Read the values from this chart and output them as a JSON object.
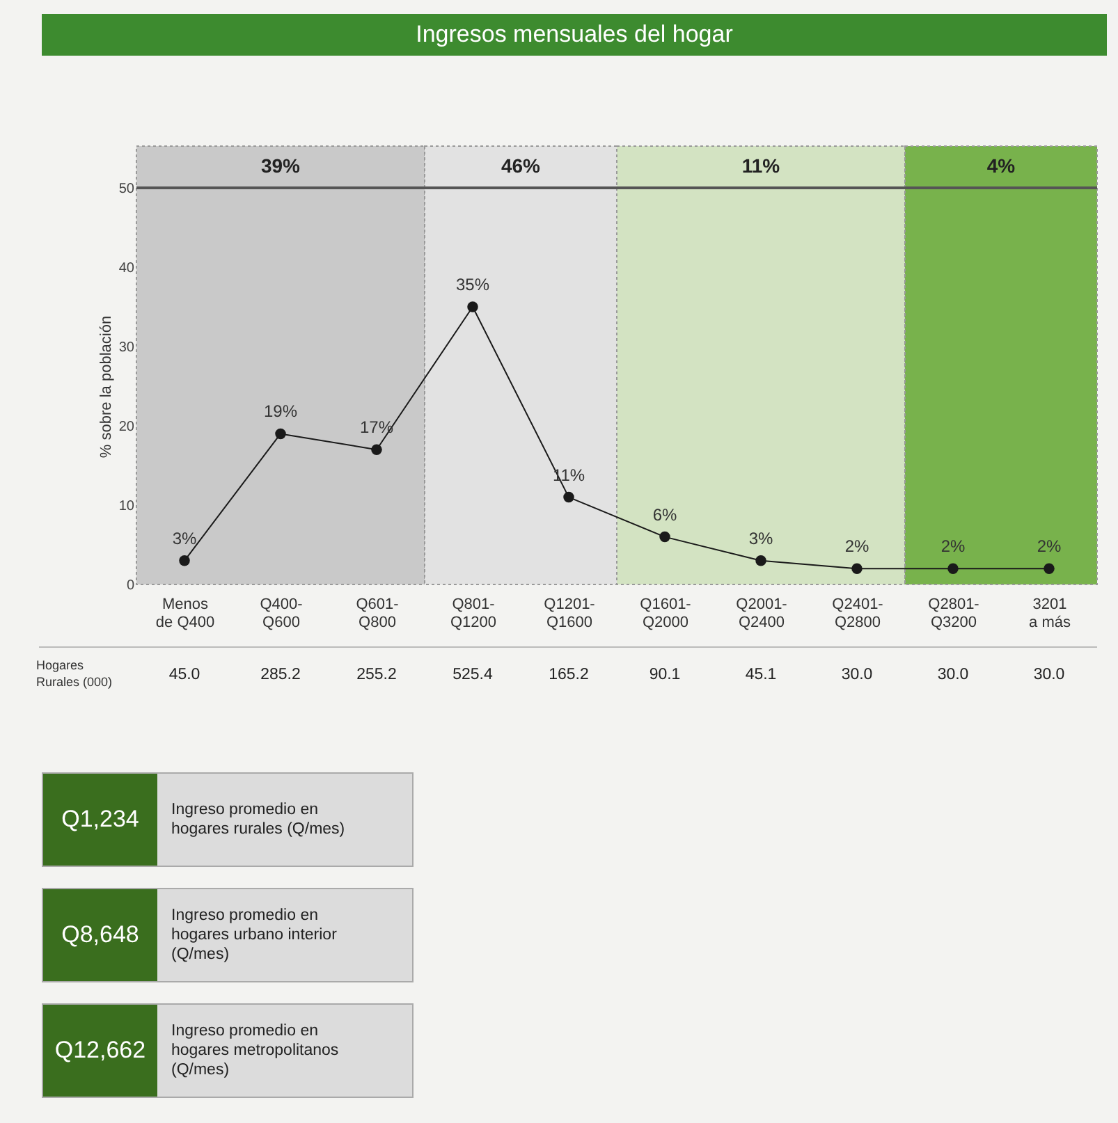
{
  "chart_data": {
    "type": "line",
    "title": "Ingresos mensuales del hogar",
    "ylabel": "% sobre la población",
    "categories": [
      "Menos de Q400",
      "Q400-Q600",
      "Q601-Q800",
      "Q801-Q1200",
      "Q1201-Q1600",
      "Q1601-Q2000",
      "Q2001-Q2400",
      "Q2401-Q2800",
      "Q2801-Q3200",
      "3201 a más"
    ],
    "series": [
      {
        "color": "#1a1a1a",
        "values": [
          3,
          19,
          17,
          35,
          11,
          6,
          3,
          2,
          2,
          2
        ],
        "value_labels": [
          "3%",
          "19%",
          "17%",
          "35%",
          "11%",
          "6%",
          "3%",
          "2%",
          "2%",
          "2%"
        ]
      }
    ],
    "marker": "circle",
    "line_style": "solid",
    "ylim": [
      0,
      50
    ],
    "yticks": [
      0,
      10,
      20,
      30,
      40,
      50
    ],
    "grid": false,
    "bands": [
      {
        "axis": "x",
        "from": "Menos de Q400",
        "to": "Q601-Q800",
        "label": "39%",
        "color": "#c9c9c9"
      },
      {
        "axis": "x",
        "from": "Q801-Q1200",
        "to": "Q1201-Q1600",
        "label": "46%",
        "color": "#e2e2e2"
      },
      {
        "axis": "x",
        "from": "Q1601-Q2000",
        "to": "Q2401-Q2800",
        "label": "11%",
        "color": "#d3e3c2"
      },
      {
        "axis": "x",
        "from": "Q2801-Q3200",
        "to": "3201 a más",
        "label": "4%",
        "color": "#78b24c"
      }
    ],
    "annotations": [
      "Hogares Rurales (000)",
      "45.0",
      "285.2",
      "255.2",
      "525.4",
      "165.2",
      "90.1",
      "45.1",
      "30.0",
      "30.0",
      "30.0",
      "Q1,234",
      "Ingreso promedio en hogares rurales (Q/mes)",
      "Q8,648",
      "Ingreso promedio en hogares urbano interior (Q/mes)",
      "Q12,662",
      "Ingreso promedio en hogares metropolitanos (Q/mes)"
    ]
  }
}
